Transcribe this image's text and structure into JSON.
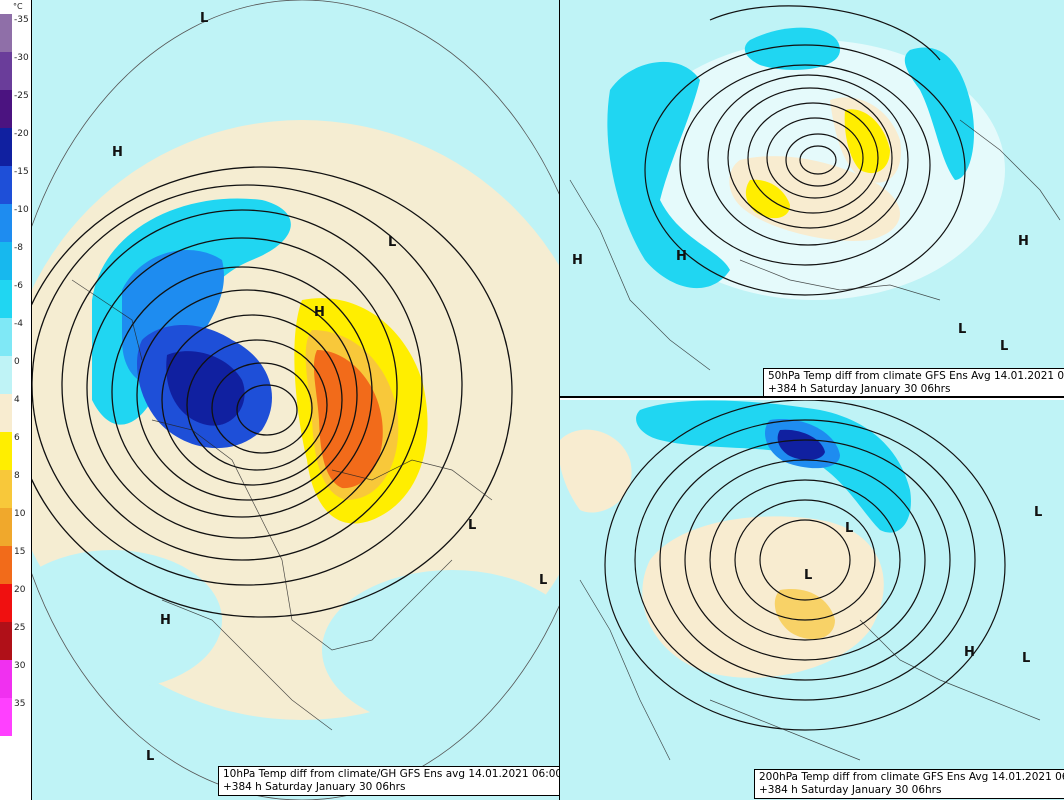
{
  "legend": {
    "unit": "°C",
    "levels": [
      {
        "label": "-35",
        "color": "#8f6fa8"
      },
      {
        "label": "-30",
        "color": "#6a3d9a"
      },
      {
        "label": "-25",
        "color": "#4b1380"
      },
      {
        "label": "-20",
        "color": "#1020a0"
      },
      {
        "label": "-15",
        "color": "#1e4fd8"
      },
      {
        "label": "-10",
        "color": "#1e8cf0"
      },
      {
        "label": "-8",
        "color": "#17b8ee"
      },
      {
        "label": "-6",
        "color": "#20d6f2"
      },
      {
        "label": "-4",
        "color": "#7fe8f6"
      },
      {
        "label": "0",
        "color": "#bff3f6"
      },
      {
        "label": "4",
        "color": "#f8ecd0"
      },
      {
        "label": "6",
        "color": "#ffee00"
      },
      {
        "label": "8",
        "color": "#f8c83a"
      },
      {
        "label": "10",
        "color": "#f0a82c"
      },
      {
        "label": "15",
        "color": "#f26b1a"
      },
      {
        "label": "20",
        "color": "#f01010"
      },
      {
        "label": "25",
        "color": "#b01018"
      },
      {
        "label": "30",
        "color": "#f030f0"
      },
      {
        "label": "35",
        "color": "#ff40ff"
      }
    ]
  },
  "panels": {
    "p10": {
      "caption_line1": "10hPa Temp diff from climate/GH GFS Ens avg 14.01.2021 06:00",
      "caption_line2": "+384 h Saturday January 30 06hrs"
    },
    "p50": {
      "caption_line1": "50hPa Temp diff from climate GFS Ens Avg 14.01.2021 06:00",
      "caption_line2": "+384 h Saturday January 30 06hrs"
    },
    "p200": {
      "caption_line1": "200hPa Temp diff from climate GFS Ens Avg 14.01.2021 06:00",
      "caption_line2": "+384 h Saturday January 30 06hrs"
    }
  },
  "pressure_markers": {
    "p10": [
      "L",
      "H",
      "L",
      "H",
      "L",
      "L",
      "H",
      "L"
    ],
    "p50": [
      "H",
      "H",
      "H",
      "L",
      "L"
    ],
    "p200": [
      "L",
      "L",
      "H",
      "L",
      "L"
    ]
  },
  "colors": {
    "ocean_base": "#bff3f6",
    "contour": "#111111",
    "border": "#000000"
  }
}
